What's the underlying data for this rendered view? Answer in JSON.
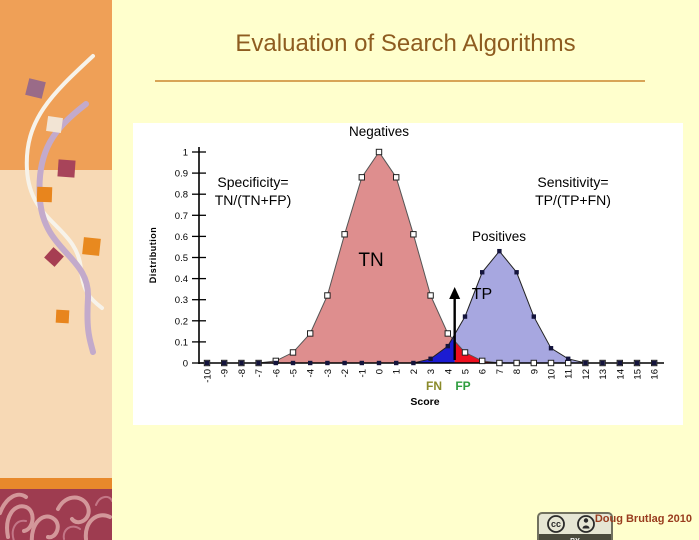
{
  "slide": {
    "title": "Evaluation of Search Algorithms",
    "credit": "Doug Brutlag 2010",
    "cc_badge": {
      "cc_text": "cc",
      "label": "BY"
    }
  },
  "colors": {
    "background": "#ffffcd",
    "sidebar_orange": "#efa057",
    "sidebar_peach": "#f7d9b5",
    "sidebar_bar": "#e8892b",
    "pattern_maroon": "#9e3c50",
    "title": "#8e5c20",
    "rule": "#d8a557",
    "credit": "#993c1e"
  },
  "chart_data": {
    "type": "area",
    "title": "",
    "xlabel": "Score",
    "ylabel": "Distribution",
    "xlim": [
      -10,
      16
    ],
    "ylim": [
      0,
      1
    ],
    "grid": false,
    "legend": false,
    "x": [
      -10,
      -9,
      -8,
      -7,
      -6,
      -5,
      -4,
      -3,
      -2,
      -1,
      0,
      1,
      2,
      3,
      4,
      5,
      6,
      7,
      8,
      9,
      10,
      11,
      12,
      13,
      14,
      15,
      16
    ],
    "yticks": [
      0,
      0.1,
      0.2,
      0.3,
      0.4,
      0.5,
      0.6,
      0.7,
      0.8,
      0.9,
      1
    ],
    "series": [
      {
        "name": "Negatives",
        "marker": "open-square",
        "fill": "#de8e8e",
        "stroke": "#555555",
        "values": [
          0,
          0,
          0,
          0,
          0.01,
          0.05,
          0.14,
          0.32,
          0.61,
          0.88,
          1,
          0.88,
          0.61,
          0.32,
          0.14,
          0.05,
          0.01,
          0,
          0,
          0,
          0,
          0,
          0,
          0,
          0,
          0,
          0
        ]
      },
      {
        "name": "Positives",
        "marker": "filled-square",
        "fill": "#a7a7e0",
        "stroke": "#222222",
        "values": [
          0,
          0,
          0,
          0,
          0,
          0,
          0,
          0,
          0,
          0,
          0,
          0,
          0,
          0.02,
          0.08,
          0.22,
          0.43,
          0.53,
          0.43,
          0.22,
          0.07,
          0.02,
          0,
          0,
          0,
          0,
          0
        ]
      }
    ],
    "threshold": {
      "x": 4.4,
      "arrow_top": 0.36
    },
    "regions": [
      {
        "name": "FN",
        "under": "Positives",
        "from": 2,
        "to": 4.4,
        "color": "#1c1cd2"
      },
      {
        "name": "FP",
        "under": "Negatives",
        "from": 4.4,
        "to": 7,
        "color": "#ee0f1f"
      }
    ],
    "annotations": {
      "negatives": "Negatives",
      "positives": "Positives",
      "tn": "TN",
      "tp": "TP",
      "fn": "FN",
      "fp": "FP",
      "specificity_1": "Specificity=",
      "specificity_2": "TN/(TN+FP)",
      "sensitivity_1": "Sensitivity=",
      "sensitivity_2": "TP/(TP+FN)"
    },
    "label_colors": {
      "fn_label": "#8a8a2a",
      "fp_label": "#2f9e3f"
    }
  }
}
